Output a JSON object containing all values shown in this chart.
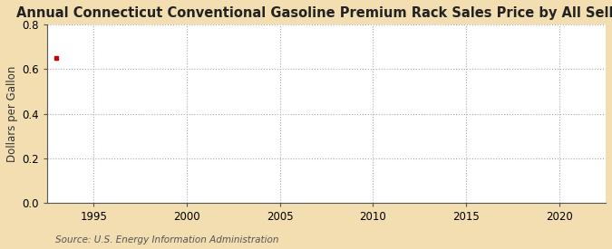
{
  "title": "Annual Connecticut Conventional Gasoline Premium Rack Sales Price by All Sellers",
  "ylabel": "Dollars per Gallon",
  "source_text": "Source: U.S. Energy Information Administration",
  "figure_bg_color": "#f2deb0",
  "plot_bg_color": "#ffffff",
  "data_x": [
    1993.0
  ],
  "data_y": [
    0.649
  ],
  "data_color": "#cc0000",
  "marker": "s",
  "marker_size": 3,
  "xlim": [
    1992.5,
    2022.5
  ],
  "ylim": [
    0.0,
    0.8
  ],
  "xticks": [
    1995,
    2000,
    2005,
    2010,
    2015,
    2020
  ],
  "yticks": [
    0.0,
    0.2,
    0.4,
    0.6,
    0.8
  ],
  "grid_color": "#aaaaaa",
  "grid_linestyle": ":",
  "grid_alpha": 1.0,
  "grid_linewidth": 0.8,
  "title_fontsize": 10.5,
  "ylabel_fontsize": 8.5,
  "tick_fontsize": 8.5,
  "source_fontsize": 7.5
}
